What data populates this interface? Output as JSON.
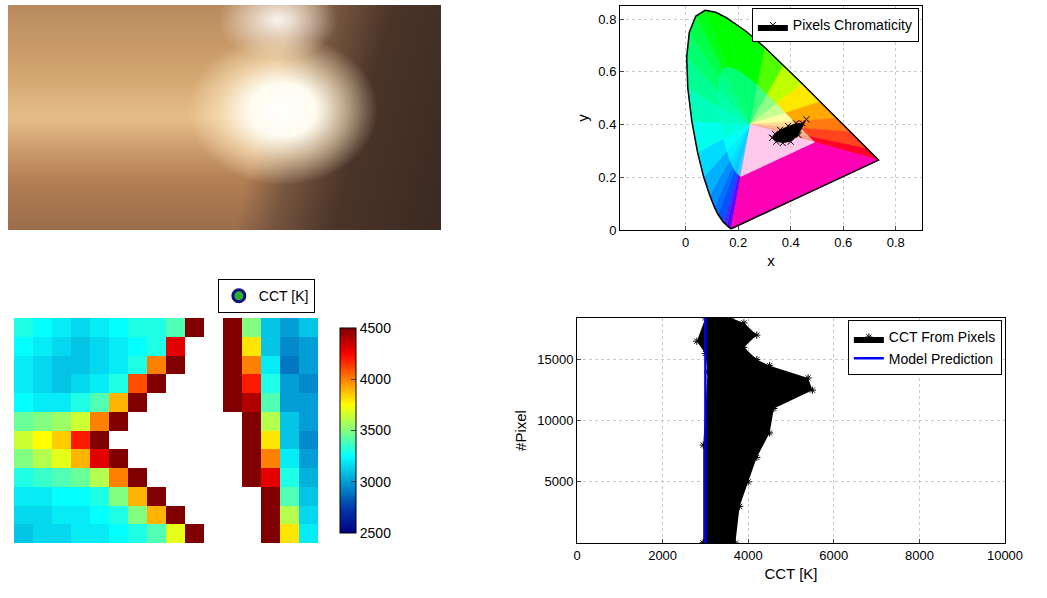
{
  "chart_data": [
    {
      "type": "image"
    },
    {
      "type": "scatter",
      "xlabel": "x",
      "ylabel": "y",
      "xlim": [
        -0.25,
        0.9
      ],
      "ylim": [
        0,
        0.85
      ],
      "xticks": [
        0,
        0.2,
        0.4,
        0.6,
        0.8
      ],
      "yticks": [
        0,
        0.2,
        0.4,
        0.6,
        0.8
      ],
      "grid": true,
      "legend": "top right",
      "spectral_locus": {
        "x": [
          0.1733,
          0.1714,
          0.1644,
          0.1566,
          0.144,
          0.1241,
          0.1096,
          0.0913,
          0.0687,
          0.0454,
          0.0235,
          0.0082,
          0.0039,
          0.0139,
          0.0389,
          0.0743,
          0.1142,
          0.1547,
          0.2296,
          0.3016,
          0.3731,
          0.4441,
          0.5125,
          0.5752,
          0.627,
          0.6915,
          0.719,
          0.7347
        ],
        "y": [
          0.0048,
          0.0051,
          0.0109,
          0.0177,
          0.0297,
          0.0578,
          0.0868,
          0.1327,
          0.2007,
          0.295,
          0.4127,
          0.5384,
          0.6548,
          0.7502,
          0.812,
          0.8338,
          0.8262,
          0.8059,
          0.7543,
          0.6923,
          0.6245,
          0.5547,
          0.4866,
          0.4242,
          0.3725,
          0.3083,
          0.2809,
          0.2653
        ]
      },
      "series": [
        {
          "name": "Pixels Chromaticity",
          "color": "#000000",
          "marker": "x",
          "x": [
            0.33,
            0.345,
            0.37,
            0.4,
            0.43,
            0.46,
            0.445,
            0.42,
            0.39,
            0.36,
            0.34,
            0.33
          ],
          "y": [
            0.35,
            0.335,
            0.33,
            0.335,
            0.36,
            0.42,
            0.405,
            0.405,
            0.395,
            0.38,
            0.365,
            0.35
          ]
        }
      ]
    },
    {
      "type": "heatmap",
      "tick_labels": false,
      "legend": "top right",
      "series": [
        {
          "name": "CCT [K]",
          "marker": "circle"
        }
      ],
      "colorbar_range": [
        2500,
        4500
      ],
      "colorbar_ticks": [
        2500,
        3000,
        3500,
        4000,
        4500
      ],
      "cells": [
        [
          3300,
          3250,
          3200,
          3150,
          3200,
          3250,
          3300,
          3300,
          3400,
          4500,
          null,
          4500,
          3500,
          3100,
          3000,
          3100
        ],
        [
          3250,
          3200,
          3150,
          3100,
          3150,
          3200,
          3250,
          3300,
          4300,
          null,
          null,
          4500,
          3800,
          3100,
          2950,
          3000
        ],
        [
          3200,
          3150,
          3100,
          3100,
          3150,
          3200,
          3300,
          4000,
          4500,
          null,
          null,
          4500,
          4000,
          3200,
          2900,
          3000
        ],
        [
          3200,
          3150,
          3100,
          3150,
          3200,
          3300,
          4100,
          4500,
          null,
          null,
          null,
          4500,
          4200,
          3300,
          3000,
          2950
        ],
        [
          3250,
          3200,
          3200,
          3300,
          3400,
          3900,
          4500,
          null,
          null,
          null,
          null,
          4500,
          4400,
          3400,
          3000,
          3000
        ],
        [
          3450,
          3500,
          3550,
          3650,
          4000,
          4500,
          null,
          null,
          null,
          null,
          null,
          null,
          4500,
          3600,
          3100,
          3000
        ],
        [
          3650,
          3750,
          3850,
          4200,
          4500,
          null,
          null,
          null,
          null,
          null,
          null,
          null,
          4500,
          3800,
          3100,
          2950
        ],
        [
          3500,
          3600,
          3700,
          3900,
          4300,
          4500,
          null,
          null,
          null,
          null,
          null,
          null,
          4500,
          4000,
          3200,
          3000
        ],
        [
          3300,
          3350,
          3400,
          3450,
          3600,
          4000,
          4500,
          null,
          null,
          null,
          null,
          null,
          4500,
          4300,
          3300,
          3050
        ],
        [
          3200,
          3200,
          3250,
          3250,
          3300,
          3500,
          3900,
          4500,
          null,
          null,
          null,
          null,
          null,
          4500,
          3400,
          3100
        ],
        [
          3150,
          3150,
          3200,
          3200,
          3250,
          3300,
          3500,
          3900,
          4500,
          null,
          null,
          null,
          null,
          4500,
          3600,
          3150
        ],
        [
          3100,
          3150,
          3150,
          3200,
          3200,
          3250,
          3300,
          3400,
          3700,
          4500,
          null,
          null,
          null,
          4500,
          3800,
          3200
        ]
      ]
    },
    {
      "type": "scatter",
      "xlabel": "CCT [K]",
      "ylabel": "#Pixel",
      "xlim": [
        0,
        10000
      ],
      "ylim": [
        0,
        18400
      ],
      "xticks": [
        0,
        2000,
        4000,
        6000,
        8000,
        10000
      ],
      "yticks": [
        5000,
        10000,
        15000
      ],
      "grid": true,
      "legend": "top right",
      "series": [
        {
          "name": "CCT From Pixels",
          "color": "#000000",
          "marker": "asterisk",
          "x": [
            2950,
            3700,
            3800,
            4000,
            4200,
            4500,
            4600,
            5500,
            5400,
            4500,
            4200,
            3900,
            4200,
            3900,
            3600,
            3000,
            2800,
            3000,
            3050,
            2950,
            2950
          ],
          "y": [
            0,
            0,
            3000,
            5000,
            7000,
            9000,
            11000,
            12500,
            13500,
            14500,
            15000,
            16000,
            17000,
            18000,
            18400,
            18400,
            16500,
            15500,
            14000,
            8000,
            0
          ]
        },
        {
          "name": "Model Prediction",
          "type": "line",
          "color": "#0000ff",
          "line_style": "solid",
          "x": [
            3000,
            3000
          ],
          "y": [
            0,
            18400
          ]
        }
      ]
    }
  ]
}
